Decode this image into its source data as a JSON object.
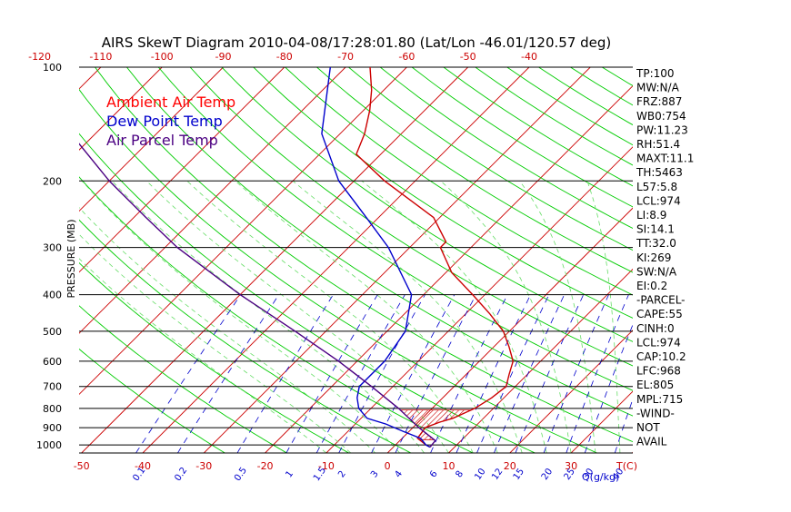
{
  "chart_data": {
    "type": "line",
    "title": "AIRS SkewT Diagram 2010-04-08/17:28:01.80 (Lat/Lon -46.01/120.57 deg)",
    "ylabel": "PRESSURE (MB)",
    "xlabel_bottom_unit": "T(C)",
    "mixing_ratio_unit": "Q(g/kg)",
    "y_scale": "log",
    "ylim": [
      1050,
      100
    ],
    "pressure_ticks": [
      "100",
      "200",
      "300",
      "400",
      "500",
      "600",
      "700",
      "800",
      "900",
      "1000"
    ],
    "top_temp_ticks": [
      "-120",
      "-110",
      "-100",
      "-90",
      "-80",
      "-70",
      "-60",
      "-50",
      "-40"
    ],
    "bottom_temp_ticks": [
      "-50",
      "-40",
      "-30",
      "-20",
      "-10",
      "0",
      "10",
      "20",
      "30"
    ],
    "mixing_ratio_labels": [
      "0.1",
      "0.2",
      "0.5",
      "1",
      "1.5",
      "2",
      "3",
      "4",
      "6",
      "8",
      "10",
      "12",
      "15",
      "20",
      "25",
      "30",
      "40"
    ],
    "legend": [
      {
        "label": "Ambient Air Temp",
        "color": "#ff0000"
      },
      {
        "label": "Dew Point Temp",
        "color": "#0000cc"
      },
      {
        "label": "Air Parcel Temp",
        "color": "#4b0082"
      }
    ],
    "series": [
      {
        "name": "Ambient Air Temp",
        "color": "#cc0000",
        "p": [
          1013,
          1000,
          960,
          920,
          900,
          870,
          850,
          800,
          750,
          700,
          650,
          600,
          550,
          500,
          450,
          400,
          350,
          300,
          290,
          250,
          200,
          170,
          150,
          130,
          115,
          100
        ],
        "t": [
          6.0,
          5.0,
          2.5,
          2.2,
          2.0,
          3.5,
          5.0,
          7.0,
          8.0,
          8.5,
          7.0,
          5.5,
          2.5,
          -1.0,
          -6.0,
          -12.0,
          -19.0,
          -25.0,
          -25.0,
          -31.0,
          -45.0,
          -54.0,
          -56.0,
          -59.0,
          -62.0,
          -66.0
        ]
      },
      {
        "name": "Dew Point Temp",
        "color": "#0000cc",
        "p": [
          1013,
          1000,
          960,
          920,
          880,
          850,
          800,
          750,
          700,
          600,
          500,
          400,
          300,
          250,
          200,
          150,
          100
        ],
        "t": [
          6.0,
          5.0,
          3.0,
          -1.0,
          -5.0,
          -9.0,
          -12.0,
          -14.0,
          -15.5,
          -15.5,
          -17.0,
          -22.0,
          -33.5,
          -42.0,
          -52.5,
          -63.0,
          -72.5
        ]
      },
      {
        "name": "Air Parcel Temp",
        "color": "#4b0082",
        "p": [
          1013,
          974,
          900,
          800,
          700,
          600,
          500,
          400,
          300,
          250,
          200,
          150,
          100
        ],
        "t": [
          6.0,
          5.8,
          1.0,
          -5.5,
          -13.5,
          -23.0,
          -35.0,
          -50.0,
          -68.0,
          -78.0,
          -90.0,
          -104.0,
          -122.0
        ]
      }
    ],
    "cape_area": {
      "p_from": 968,
      "p_to": 805,
      "color": "#cc0000"
    },
    "wind_barbs_available": false
  },
  "sidebar_stats": [
    "TP:100",
    "MW:N/A",
    "FRZ:887",
    "WB0:754",
    "PW:11.23",
    "RH:51.4",
    "MAXT:11.1",
    "TH:5463",
    "L57:5.8",
    "LCL:974",
    "LI:8.9",
    "SI:14.1",
    "TT:32.0",
    "KI:269",
    "SW:N/A",
    "EI:0.2",
    "-PARCEL-",
    "CAPE:55",
    "CINH:0",
    "LCL:974",
    "CAP:10.2",
    "LFC:968",
    "EL:805",
    "MPL:715",
    "-WIND-",
    "NOT",
    "AVAIL"
  ],
  "colors": {
    "isotherm": "#cc0000",
    "dry_adiabat": "#00cc00",
    "moist_adiabat": "#66dd66",
    "mixing_ratio": "#0000cc",
    "isobar": "#000000",
    "background": "#ffffff"
  }
}
